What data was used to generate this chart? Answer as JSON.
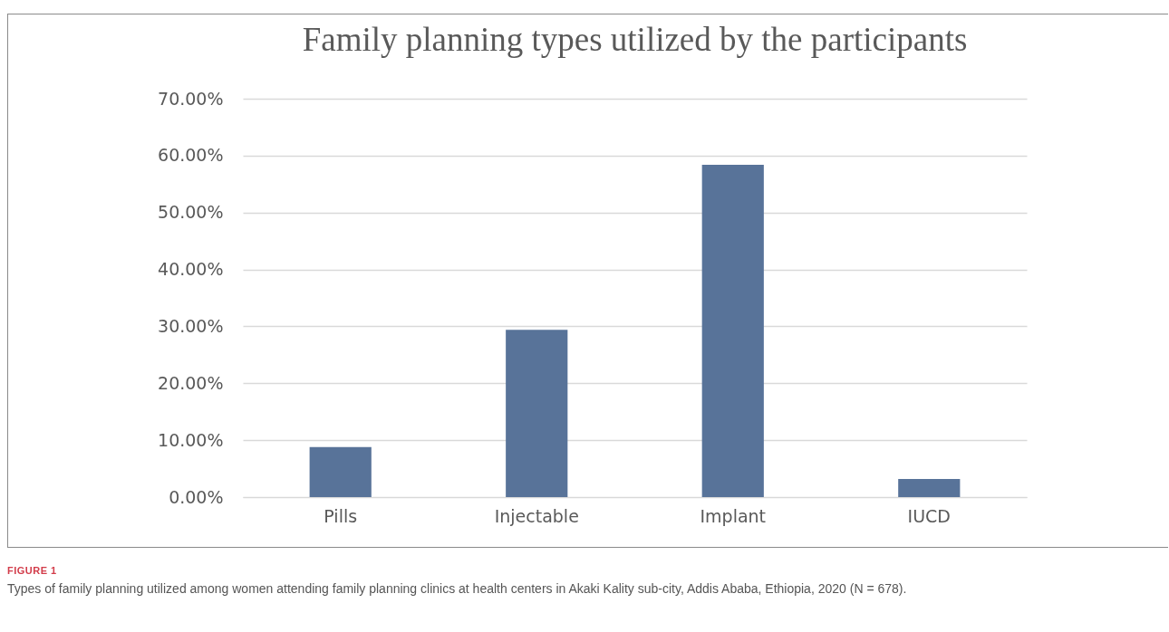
{
  "chart_data": {
    "type": "bar",
    "title": "Family planning types utilized by the participants",
    "categories": [
      "Pills",
      "Injectable",
      "Implant",
      "IUCD"
    ],
    "values": [
      8.8,
      29.4,
      58.4,
      3.2
    ],
    "color": "#587399",
    "ylim": [
      0,
      70
    ],
    "yticks": [
      {
        "value": 0,
        "label": "0.00%"
      },
      {
        "value": 10,
        "label": "10.00%"
      },
      {
        "value": 20,
        "label": "20.00%"
      },
      {
        "value": 30,
        "label": "30.00%"
      },
      {
        "value": 40,
        "label": "40.00%"
      },
      {
        "value": 50,
        "label": "50.00%"
      },
      {
        "value": 60,
        "label": "60.00%"
      },
      {
        "value": 70,
        "label": "70.00%"
      }
    ],
    "grid": "y",
    "annotations": [
      "FIGURE 1",
      "Types of family planning utilized among women attending family planning clinics at health centers in Akaki Kality sub-city, Addis Ababa, Ethiopia, 2020 (N = 678)."
    ]
  }
}
